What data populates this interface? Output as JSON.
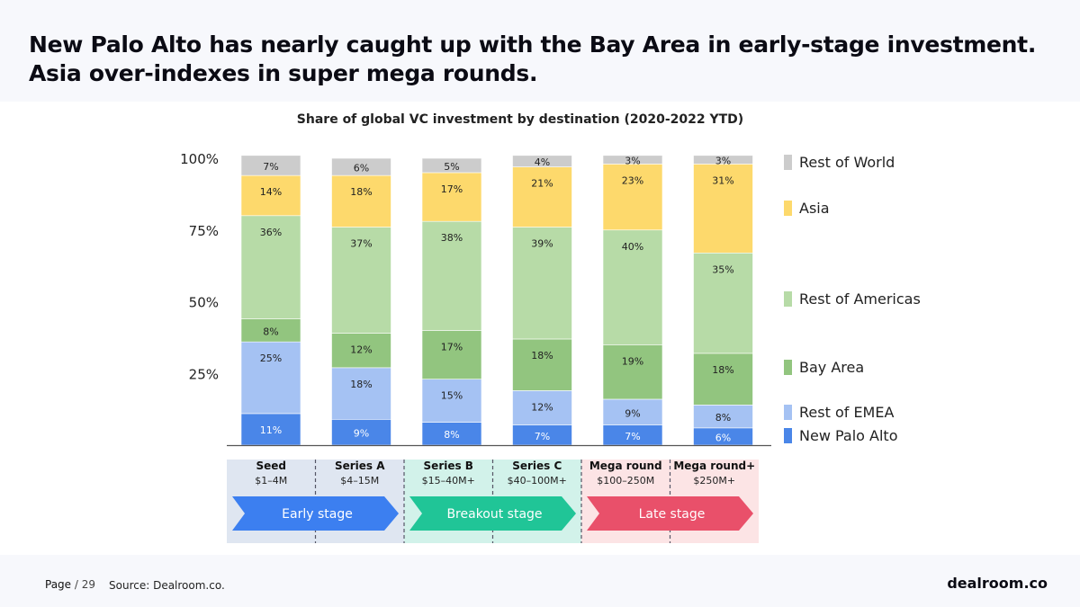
{
  "headline_lines": [
    "New Palo Alto has nearly caught up with the Bay Area in early-stage investment.",
    "Asia over-indexes in super mega rounds."
  ],
  "footer": {
    "page_label": "Page",
    "page_total": "/ 29",
    "source": "Source: Dealroom.co.",
    "brand": "dealroom.co"
  },
  "colors": {
    "rest_of_world": "#cccccc",
    "asia": "#fdd96c",
    "rest_of_americas": "#b7dba7",
    "bay_area": "#92c57f",
    "rest_of_emea": "#a5c2f3",
    "new_palo_alto": "#4a86e8",
    "early_stage": "#3c7ff0",
    "breakout_stage": "#20c597",
    "late_stage": "#e9506a",
    "early_bg": "#dfe6f1",
    "breakout_bg": "#d2f2ea",
    "late_bg": "#fce4e5"
  },
  "chart_data": {
    "type": "bar",
    "stacked": true,
    "title": "Share of global VC investment by destination (2020-2022 YTD)",
    "categories": [
      "Seed",
      "Series A",
      "Series B",
      "Series C",
      "Mega round",
      "Mega round+"
    ],
    "category_sublabels": [
      "$1–4M",
      "$4–15M",
      "$15–40M+",
      "$40–100M+",
      "$100–250M",
      "$250M+"
    ],
    "y_ticks": [
      "100%",
      "75%",
      "50%",
      "25%"
    ],
    "y_tick_values": [
      100,
      75,
      50,
      25
    ],
    "ylim": [
      0,
      100
    ],
    "legend_position": "right",
    "series": [
      {
        "name": "New Palo Alto",
        "color_key": "new_palo_alto",
        "values": [
          11,
          9,
          8,
          7,
          7,
          6
        ],
        "labels": [
          "11%",
          "9%",
          "8%",
          "7%",
          "7%",
          "6%"
        ]
      },
      {
        "name": "Rest of EMEA",
        "color_key": "rest_of_emea",
        "values": [
          25,
          18,
          15,
          12,
          9,
          8
        ],
        "labels": [
          "25%",
          "18%",
          "15%",
          "12%",
          "9%",
          "8%"
        ]
      },
      {
        "name": "Bay Area",
        "color_key": "bay_area",
        "values": [
          8,
          12,
          17,
          18,
          19,
          18
        ],
        "labels": [
          "8%",
          "12%",
          "17%",
          "18%",
          "19%",
          "18%"
        ]
      },
      {
        "name": "Rest of Americas",
        "color_key": "rest_of_americas",
        "values": [
          36,
          37,
          38,
          39,
          40,
          35
        ],
        "labels": [
          "36%",
          "37%",
          "38%",
          "39%",
          "40%",
          "35%"
        ]
      },
      {
        "name": "Asia",
        "color_key": "asia",
        "values": [
          14,
          18,
          17,
          21,
          23,
          31
        ],
        "labels": [
          "14%",
          "18%",
          "17%",
          "21%",
          "23%",
          "31%"
        ]
      },
      {
        "name": "Rest of World",
        "color_key": "rest_of_world",
        "values": [
          7,
          6,
          5,
          4,
          3,
          3
        ],
        "labels": [
          "7%",
          "6%",
          "5%",
          "4%",
          "3%",
          "3%"
        ]
      }
    ],
    "stages": [
      {
        "name": "Early stage",
        "color_key": "early_stage",
        "bg_key": "early_bg",
        "categories": [
          0,
          1
        ]
      },
      {
        "name": "Breakout stage",
        "color_key": "breakout_stage",
        "bg_key": "breakout_bg",
        "categories": [
          2,
          3
        ]
      },
      {
        "name": "Late stage",
        "color_key": "late_stage",
        "bg_key": "late_bg",
        "categories": [
          4,
          5
        ]
      }
    ]
  }
}
